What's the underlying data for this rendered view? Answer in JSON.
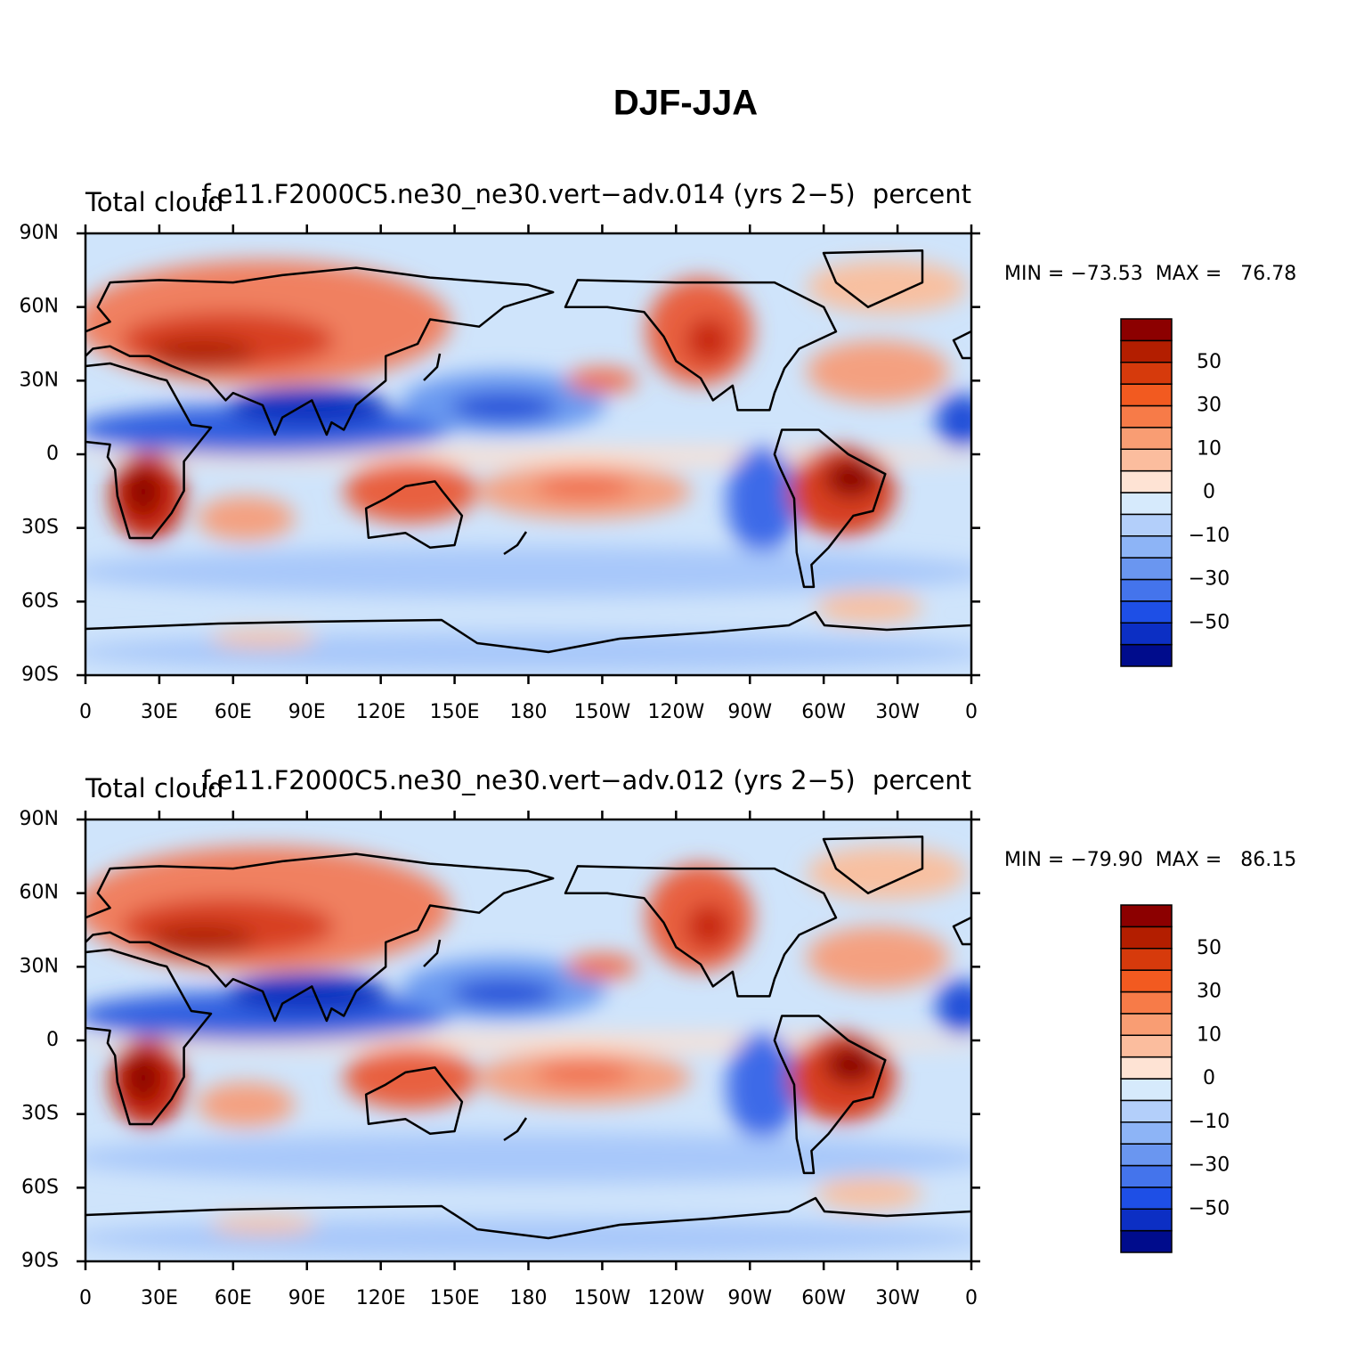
{
  "title": "DJF-JJA",
  "panels": [
    {
      "left_title": "Total cloud",
      "center_title": "f.e11.F2000C5.ne30_ne30.vert−adv.014 (yrs 2−5)",
      "right_title": "percent",
      "stats": "MIN = −73.53  MAX =   76.78",
      "xlim": [
        0,
        360
      ],
      "ylim": [
        -90,
        90
      ],
      "xticks": [
        0,
        {
          "value": 30,
          "label": "30E"
        },
        {
          "value": 60,
          "label": "60E"
        },
        {
          "value": 90,
          "label": "90E"
        },
        {
          "value": 120,
          "label": "120E"
        },
        {
          "value": 150,
          "label": "150E"
        },
        180,
        {
          "value": 210,
          "label": "150W"
        },
        {
          "value": 240,
          "label": "120W"
        },
        {
          "value": 270,
          "label": "90W"
        },
        {
          "value": 300,
          "label": "60W"
        },
        {
          "value": 330,
          "label": "30W"
        },
        {
          "value": 360,
          "label": "0"
        }
      ],
      "yticks": [
        {
          "value": 90,
          "label": "90N"
        },
        {
          "value": 60,
          "label": "60N"
        },
        {
          "value": 30,
          "label": "30N"
        },
        0,
        {
          "value": -30,
          "label": "30S"
        },
        {
          "value": -60,
          "label": "60S"
        },
        {
          "value": -90,
          "label": "90S"
        }
      ]
    },
    {
      "left_title": "Total cloud",
      "center_title": "f.e11.F2000C5.ne30_ne30.vert−adv.012 (yrs 2−5)",
      "right_title": "percent",
      "stats": "MIN = −79.90  MAX =   86.15",
      "xlim": [
        0,
        360
      ],
      "ylim": [
        -90,
        90
      ],
      "xticks": [
        0,
        {
          "value": 30,
          "label": "30E"
        },
        {
          "value": 60,
          "label": "60E"
        },
        {
          "value": 90,
          "label": "90E"
        },
        {
          "value": 120,
          "label": "120E"
        },
        {
          "value": 150,
          "label": "150E"
        },
        180,
        {
          "value": 210,
          "label": "150W"
        },
        {
          "value": 240,
          "label": "120W"
        },
        {
          "value": 270,
          "label": "90W"
        },
        {
          "value": 300,
          "label": "60W"
        },
        {
          "value": 330,
          "label": "30W"
        },
        {
          "value": 360,
          "label": "0"
        }
      ],
      "yticks": [
        {
          "value": 90,
          "label": "90N"
        },
        {
          "value": 60,
          "label": "60N"
        },
        {
          "value": 30,
          "label": "30N"
        },
        0,
        {
          "value": -30,
          "label": "30S"
        },
        {
          "value": -60,
          "label": "60S"
        },
        {
          "value": -90,
          "label": "90S"
        }
      ]
    }
  ],
  "colorbar": {
    "levels": [
      -60,
      -50,
      -40,
      -30,
      -20,
      -10,
      -5,
      0,
      5,
      10,
      20,
      30,
      40,
      50,
      60
    ],
    "colors": [
      "#000c8c",
      "#0c2fc4",
      "#1e4fe6",
      "#4474ec",
      "#6a96f0",
      "#8db4f6",
      "#b3cffa",
      "#d6eafc",
      "#fee3d4",
      "#fbbd9e",
      "#f99d73",
      "#f77b48",
      "#f25a20",
      "#d63a0c",
      "#b31e00",
      "#8c0000"
    ],
    "labels": [
      50,
      30,
      10,
      0,
      {
        "value": -10,
        "label": "−10"
      },
      {
        "value": -30,
        "label": "−30"
      },
      {
        "value": -50,
        "label": "−50"
      }
    ]
  }
}
